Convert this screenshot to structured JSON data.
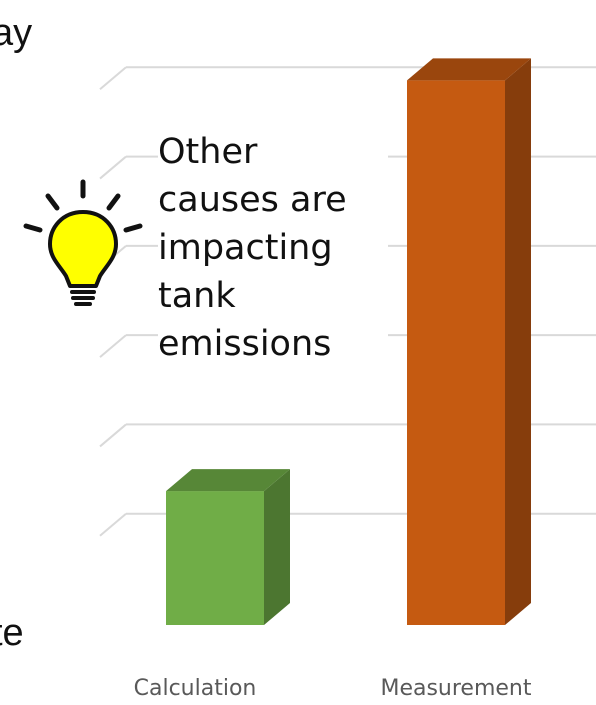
{
  "fragments": {
    "top": "ay",
    "bottom": "te"
  },
  "callout": {
    "lines": [
      "Other",
      "causes are",
      "impacting",
      "tank",
      "emissions"
    ]
  },
  "icons": {
    "bulb": "lightbulb-icon"
  },
  "colors": {
    "calculation": "#70ad47",
    "measurement": "#c55a11",
    "gridline": "#d9d9d9",
    "bulb": "#ffff00"
  },
  "chart_data": {
    "type": "bar",
    "categories": [
      "Calculation",
      "Measurement"
    ],
    "values": [
      15,
      61
    ],
    "ylim": [
      0,
      70
    ],
    "grid": true,
    "legend": "none",
    "title": "",
    "xlabel": "",
    "ylabel": ""
  }
}
